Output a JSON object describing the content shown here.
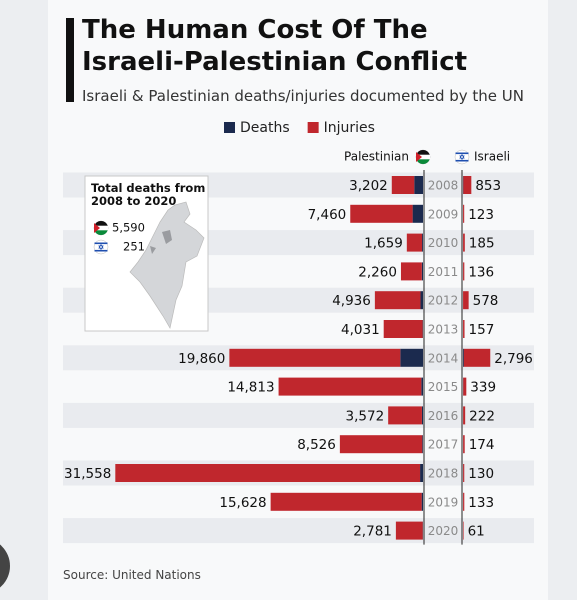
{
  "chart_data": {
    "type": "butterfly",
    "title": "The Human Cost Of The Israeli-Palestinian Conflict",
    "subtitle": "Israeli & Palestinian deaths/injuries documented by the UN",
    "source": "Source: United Nations",
    "categories": [
      "2008",
      "2009",
      "2010",
      "2011",
      "2012",
      "2013",
      "2014",
      "2015",
      "2016",
      "2017",
      "2018",
      "2019",
      "2020"
    ],
    "xlim": [
      0,
      32000
    ],
    "sides": [
      {
        "name": "Palestinian",
        "totals": [
          3202,
          7460,
          1659,
          2260,
          4936,
          4031,
          19860,
          14813,
          3572,
          8526,
          31558,
          15628,
          2781
        ],
        "value_labels": [
          "3,202",
          "7,460",
          "1,659",
          "2,260",
          "4,936",
          "4,031",
          "19,860",
          "14,813",
          "3,572",
          "8,526",
          "31,558",
          "15,628",
          "2,781"
        ]
      },
      {
        "name": "Israeli",
        "totals": [
          853,
          123,
          185,
          136,
          578,
          157,
          2796,
          339,
          222,
          174,
          130,
          133,
          61
        ],
        "value_labels": [
          "853",
          "123",
          "185",
          "136",
          "578",
          "157",
          "2,796",
          "339",
          "222",
          "174",
          "130",
          "133",
          "61"
        ]
      }
    ],
    "series": [
      {
        "name": "Deaths",
        "color": "#1b2a4e",
        "values": [
          [
            899,
            1066,
            95,
            124,
            260,
            39,
            2329,
            174,
            109,
            77,
            300,
            138,
            30
          ],
          [
            35,
            9,
            9,
            11,
            7,
            6,
            88,
            28,
            13,
            15,
            14,
            10,
            3
          ]
        ]
      },
      {
        "name": "Injuries",
        "color": "#c0272d",
        "values": [
          [
            2303,
            6394,
            1564,
            2136,
            4676,
            3992,
            17531,
            14639,
            3463,
            8449,
            31258,
            15490,
            2751
          ],
          [
            818,
            114,
            176,
            125,
            571,
            151,
            2708,
            311,
            209,
            159,
            116,
            123,
            58
          ]
        ]
      }
    ],
    "inset": {
      "title": "Total deaths from 2008 to 2020",
      "entries": [
        "5,590",
        "251"
      ]
    }
  }
}
